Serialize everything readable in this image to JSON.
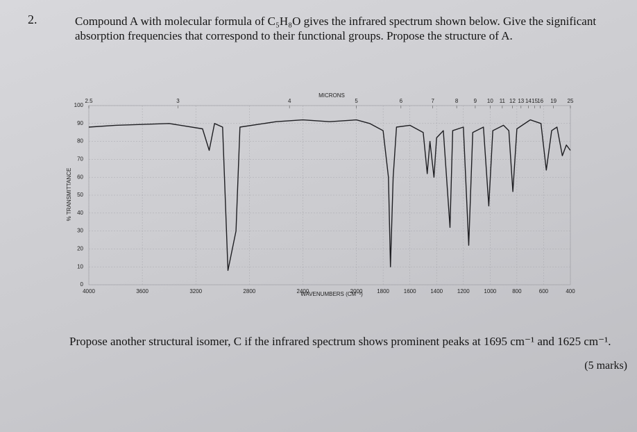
{
  "question_number": "2.",
  "question": "Compound A with molecular formula of C₅H₈O gives the infrared spectrum shown below. Give the significant absorption frequencies that correspond to their functional groups. Propose the structure of A.",
  "spectrum": {
    "type": "line",
    "top_axis_title": "MICRONS",
    "x_title": "WAVENUMBERS (CM⁻¹)",
    "y_title": "% TRANSMITTANCE",
    "xlim": [
      4000,
      400
    ],
    "xticks": [
      4000,
      3600,
      3200,
      2800,
      2400,
      2000,
      1800,
      1600,
      1400,
      1200,
      1000,
      800,
      600,
      400
    ],
    "micron_ticks": [
      2.5,
      3,
      4,
      5,
      6,
      7,
      8,
      9,
      10,
      11,
      12,
      13,
      14,
      15,
      16,
      19,
      25
    ],
    "ylim": [
      0,
      100
    ],
    "yticks": [
      0,
      10,
      20,
      30,
      40,
      50,
      60,
      70,
      80,
      90,
      100
    ],
    "grid": true,
    "color": "#1e1e22",
    "x": [
      4000,
      3800,
      3400,
      3150,
      3100,
      3060,
      3000,
      2960,
      2900,
      2870,
      2600,
      2400,
      2200,
      2000,
      1900,
      1800,
      1760,
      1745,
      1725,
      1700,
      1600,
      1500,
      1470,
      1450,
      1420,
      1400,
      1350,
      1300,
      1280,
      1200,
      1160,
      1130,
      1050,
      1010,
      980,
      900,
      860,
      830,
      800,
      700,
      620,
      580,
      540,
      500,
      460,
      430,
      400
    ],
    "values": [
      88,
      89,
      90,
      87,
      75,
      90,
      88,
      8,
      30,
      88,
      91,
      92,
      91,
      92,
      90,
      86,
      60,
      10,
      60,
      88,
      89,
      85,
      62,
      80,
      60,
      82,
      86,
      32,
      86,
      88,
      22,
      85,
      88,
      44,
      86,
      89,
      86,
      52,
      87,
      92,
      90,
      64,
      86,
      88,
      72,
      78,
      75
    ]
  },
  "follow_up": "Propose another structural isomer, C if the infrared spectrum shows prominent peaks at 1695 cm⁻¹ and 1625 cm⁻¹.",
  "marks": "(5 marks)"
}
